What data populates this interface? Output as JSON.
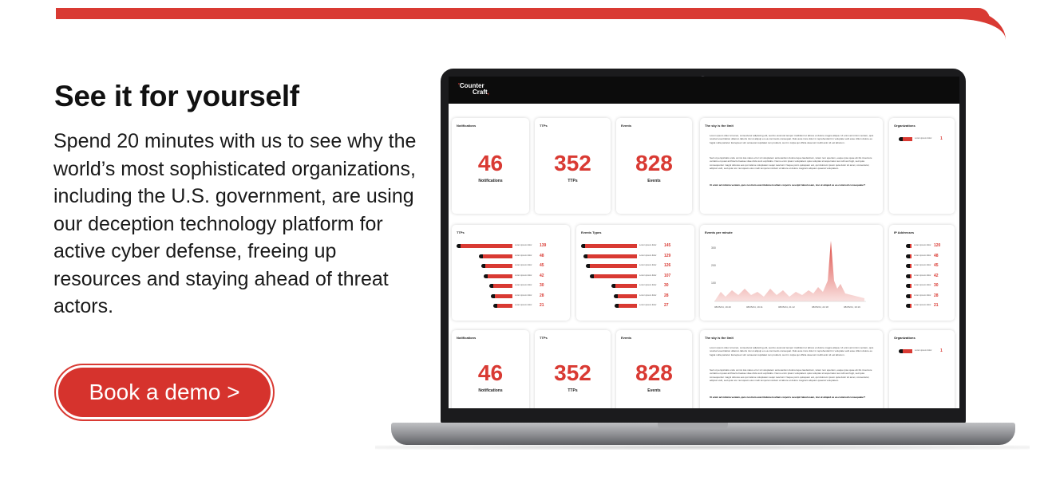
{
  "headline": "See it for yourself",
  "description": "Spend 20 minutes with us to see why the world’s most sophisticated organizations, including the U.S. government, are using our deception technology platform for active cyber defense, freeing up resources and staying ahead of threat actors.",
  "cta": {
    "label": "Book a demo >"
  },
  "accent_color": "#d93a33",
  "screen": {
    "logo_line1": "Counter",
    "logo_line2": "Craft",
    "cards": {
      "notifications": {
        "title": "Notifications",
        "value": "46",
        "label": "Notifications"
      },
      "ttps": {
        "title": "TTPs",
        "value": "352",
        "label": "TTPs"
      },
      "events": {
        "title": "Events",
        "value": "828",
        "label": "Events"
      },
      "sky": {
        "title": "The sky is the limit",
        "p1": "Lorem ipsum dolor sit amet, consectetur adipiscing elit, sed do eiusmod tempor incididunt ut labore et dolore magna aliqua. Ut enim ad minim veniam, quis nostrud exercitation ullamco laboris nisi ut aliquip ex ea commodo consequat. Duis aute irure dolor in reprehenderit in voluptate velit esse cillum dolore eu fugiat nulla pariatur. Excepteur sint occaecat cupidatat non proident, sunt in culpa qui officia deserunt mollit anim id est laborum.",
        "p2": "Sed ut perspiciatis unde omnis iste natus error sit voluptatem accusantium doloremque laudantium, totam rem aperiam, eaque ipsa quae ab illo inventore veritatis et quasi architecto beatae vitae dicta sunt explicabo. Nemo enim ipsam voluptatem quia voluptas sit aspernatur aut odit aut fugit, sed quia consequuntur magni dolores eos qui ratione voluptatem sequi nesciunt. Neque porro quisquam est, qui dolorem ipsum quia dolor sit amet, consectetur, adipisci velit, sed quia non numquam eius modi tempora incidunt ut labore et dolore magnam aliquam quaerat voluptatem.",
        "p3": "Ut enim ad minima veniam, quis nostrum exercitationem ullam corporis suscipit laboriosam, nisi ut aliquid ex ea commodi consequatur?"
      },
      "organizations": {
        "title": "Organizations",
        "item_label": "Lorem ipsum dolor",
        "value": "1"
      },
      "ttps_list": {
        "title": "TTPs",
        "item_label": "Lorem ipsum dolor",
        "values": [
          "139",
          "48",
          "45",
          "42",
          "30",
          "28",
          "21"
        ],
        "fractions": [
          1.0,
          0.6,
          0.55,
          0.52,
          0.42,
          0.38,
          0.34
        ]
      },
      "event_types": {
        "title": "Events Types",
        "item_label": "Lorem ipsum dolor",
        "values": [
          "145",
          "129",
          "126",
          "107",
          "30",
          "28",
          "27"
        ],
        "fractions": [
          1.0,
          0.95,
          0.92,
          0.84,
          0.45,
          0.42,
          0.4
        ]
      },
      "events_per_minute": {
        "title": "Events per minute",
        "y_labels": [
          "300",
          "200",
          "100"
        ],
        "x_labels": [
          "08/05/24, 19:40",
          "08/05/24, 19:11",
          "08/05/24, 21:12",
          "08/05/24, 22:18",
          "08/05/24, 19:19"
        ]
      },
      "ip_addresses": {
        "title": "IP Addresses",
        "item_label": "Lorem ipsum dolor",
        "values": [
          "120",
          "48",
          "45",
          "42",
          "30",
          "28",
          "21"
        ]
      }
    }
  }
}
